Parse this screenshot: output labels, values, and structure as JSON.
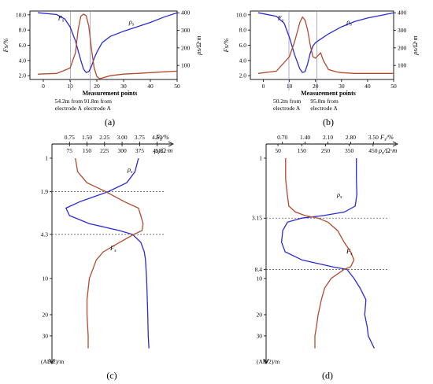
{
  "colors": {
    "rho": "#2b2bd6",
    "f": "#b24a2e"
  },
  "chart_data": [
    {
      "id": "a",
      "type": "line",
      "caption": "(a)",
      "xlabel": "Measurement points",
      "ylabel_left": "Fs/%",
      "ylabel_right": "ρs/Ω·m",
      "xlim": [
        -5,
        50
      ],
      "ylim_left": [
        1.5,
        10.5
      ],
      "ylim_right": [
        20,
        410
      ],
      "x_ticks": [
        "0",
        "10",
        "20",
        "30",
        "40",
        "50"
      ],
      "x_tick_values": [
        0,
        10,
        20,
        30,
        40,
        50
      ],
      "left_ticks": [
        "2.0",
        "4.0",
        "6.0",
        "8.0",
        "10.0"
      ],
      "left_tick_values": [
        2,
        4,
        6,
        8,
        10
      ],
      "right_ticks": [
        "100",
        "200",
        "300",
        "400"
      ],
      "right_tick_values": [
        100,
        200,
        300,
        400
      ],
      "series": [
        {
          "name": "ρs",
          "axis": "right",
          "x": [
            -2,
            5,
            8,
            10,
            12,
            14,
            15,
            16,
            17,
            18,
            19,
            20,
            22,
            25,
            30,
            35,
            40,
            45,
            50
          ],
          "y": [
            400,
            390,
            365,
            320,
            240,
            130,
            80,
            60,
            65,
            95,
            140,
            175,
            230,
            265,
            295,
            320,
            345,
            375,
            400
          ]
        },
        {
          "name": "Fs",
          "axis": "left",
          "x": [
            -2,
            5,
            10,
            12,
            13,
            14,
            15,
            16,
            17,
            18,
            19,
            20,
            21,
            22,
            25,
            30,
            35,
            40,
            45,
            50
          ],
          "y": [
            2.2,
            2.3,
            3.0,
            5.0,
            8.0,
            9.8,
            10.1,
            9.9,
            8.5,
            5.5,
            3.0,
            1.9,
            1.6,
            1.7,
            2.0,
            2.2,
            2.3,
            2.4,
            2.5,
            2.6
          ]
        }
      ],
      "markers": [
        {
          "x": 10.2,
          "label": [
            "54.2m from",
            "electrode A"
          ]
        },
        {
          "x": 17.5,
          "label": [
            "91.8m from",
            "electrode A"
          ]
        }
      ]
    },
    {
      "id": "b",
      "type": "line",
      "caption": "(b)",
      "xlabel": "Measurement points",
      "ylabel_left": "Fs/%",
      "ylabel_right": "ρs/Ω·m",
      "xlim": [
        -5,
        50
      ],
      "ylim_left": [
        1.5,
        10.5
      ],
      "ylim_right": [
        20,
        410
      ],
      "x_ticks": [
        "0",
        "10",
        "20",
        "30",
        "40",
        "50"
      ],
      "x_tick_values": [
        0,
        10,
        20,
        30,
        40,
        50
      ],
      "left_ticks": [
        "2.0",
        "4.0",
        "6.0",
        "8.0",
        "10.0"
      ],
      "left_tick_values": [
        2,
        4,
        6,
        8,
        10
      ],
      "right_ticks": [
        "100",
        "200",
        "300",
        "400"
      ],
      "right_tick_values": [
        100,
        200,
        300,
        400
      ],
      "series": [
        {
          "name": "ρs",
          "axis": "right",
          "x": [
            -2,
            5,
            8,
            10,
            12,
            14,
            15,
            16,
            17,
            18,
            19,
            20,
            22,
            25,
            30,
            35,
            40,
            45,
            50
          ],
          "y": [
            400,
            380,
            340,
            260,
            160,
            80,
            60,
            65,
            110,
            170,
            210,
            230,
            250,
            280,
            320,
            350,
            370,
            385,
            400
          ]
        },
        {
          "name": "Fs",
          "axis": "left",
          "x": [
            -2,
            5,
            10,
            12,
            14,
            15,
            16,
            17,
            18,
            19,
            20,
            22,
            23,
            25,
            28,
            30,
            35,
            40,
            45,
            50
          ],
          "y": [
            2.3,
            2.6,
            4.5,
            6.5,
            9.0,
            9.7,
            9.3,
            8.0,
            6.0,
            4.5,
            4.3,
            5.0,
            4.0,
            2.8,
            2.5,
            2.4,
            2.3,
            2.3,
            2.3,
            2.3
          ]
        }
      ],
      "markers": [
        {
          "x": 9.8,
          "label": [
            "50.2m from",
            "electrode A"
          ]
        },
        {
          "x": 20.5,
          "label": [
            "95.8m from",
            "electrode A"
          ]
        }
      ]
    },
    {
      "id": "c",
      "type": "line",
      "caption": "(c)",
      "ylabel": "(AB/2)/m",
      "top_label_f": "Fs/%",
      "top_label_rho": "ρs/Ω·m",
      "f_ticks": [
        "0.75",
        "1.50",
        "2.25",
        "3.00",
        "3.75",
        "4.50"
      ],
      "f_tick_values": [
        0.75,
        1.5,
        2.25,
        3.0,
        3.75,
        4.5
      ],
      "rho_ticks": [
        "75",
        "150",
        "225",
        "300",
        "375",
        "450"
      ],
      "rho_tick_values": [
        75,
        150,
        225,
        300,
        375,
        450
      ],
      "flim": [
        0.0,
        4.85
      ],
      "rholim": [
        0,
        485
      ],
      "depth_ticks": [
        "1",
        "1.9",
        "4.3",
        "10",
        "20",
        "30"
      ],
      "depth_tick_values": [
        1,
        1.9,
        4.3,
        10,
        20,
        30
      ],
      "depthlim": [
        1,
        40
      ],
      "dashed_depths": [
        1.9,
        4.3
      ],
      "series": [
        {
          "name": "ρs",
          "axis": "rho",
          "y": [
            1,
            1.3,
            1.6,
            1.9,
            2.3,
            2.6,
            3.0,
            3.5,
            4.0,
            4.3,
            5,
            6,
            7,
            10,
            15,
            20,
            30,
            38
          ],
          "x": [
            370,
            355,
            320,
            240,
            120,
            60,
            75,
            160,
            290,
            345,
            380,
            395,
            400,
            405,
            408,
            410,
            412,
            415
          ]
        },
        {
          "name": "Fs",
          "axis": "f",
          "y": [
            1,
            1.3,
            1.6,
            1.9,
            2.3,
            2.6,
            3.0,
            3.5,
            4.0,
            4.3,
            5,
            6,
            7,
            10,
            15,
            20,
            30,
            38
          ],
          "x": [
            1.0,
            1.1,
            1.5,
            2.3,
            3.1,
            3.7,
            3.8,
            3.9,
            3.85,
            3.5,
            2.9,
            2.2,
            1.9,
            1.6,
            1.5,
            1.5,
            1.55,
            1.55
          ]
        }
      ]
    },
    {
      "id": "d",
      "type": "line",
      "caption": "(d)",
      "ylabel": "(AB/2)/m",
      "top_label_f": "Fs/%",
      "top_label_rho": "ρs/Ω·m",
      "f_ticks": [
        "0.70",
        "1.40",
        "2.10",
        "2.80",
        "3.50"
      ],
      "f_tick_values": [
        0.7,
        1.4,
        2.1,
        2.8,
        3.5
      ],
      "rho_ticks": [
        "50",
        "150",
        "250",
        "350",
        "450"
      ],
      "rho_tick_values": [
        50,
        150,
        250,
        350,
        450
      ],
      "flim": [
        0.2,
        4.0
      ],
      "rholim": [
        0,
        520
      ],
      "depth_ticks": [
        "1",
        "3.15",
        "8.4",
        "10",
        "20",
        "30"
      ],
      "depth_tick_values": [
        1,
        3.15,
        8.4,
        10,
        20,
        30
      ],
      "depthlim": [
        1,
        40
      ],
      "dashed_depths": [
        3.15,
        8.4
      ],
      "series": [
        {
          "name": "ρs",
          "axis": "rho",
          "y": [
            1,
            1.5,
            2.0,
            2.5,
            2.8,
            3.0,
            3.15,
            3.4,
            4.0,
            5.0,
            6.0,
            7.0,
            8.0,
            8.4,
            10,
            12,
            15,
            20,
            25,
            30,
            38
          ],
          "x": [
            380,
            380,
            382,
            375,
            330,
            240,
            150,
            90,
            70,
            65,
            80,
            150,
            280,
            340,
            370,
            395,
            420,
            415,
            425,
            430,
            455
          ]
        },
        {
          "name": "Fs",
          "axis": "f",
          "y": [
            1,
            1.5,
            2.0,
            2.5,
            2.8,
            3.0,
            3.15,
            3.4,
            4.0,
            5.0,
            6.0,
            7.0,
            8.0,
            8.4,
            10,
            12,
            15,
            20,
            25,
            30,
            38
          ],
          "x": [
            0.8,
            0.8,
            0.85,
            0.9,
            1.1,
            1.4,
            1.8,
            2.1,
            2.4,
            2.6,
            2.8,
            2.9,
            2.8,
            2.6,
            2.2,
            2.0,
            1.9,
            1.8,
            1.75,
            1.7,
            1.7
          ]
        }
      ]
    }
  ]
}
